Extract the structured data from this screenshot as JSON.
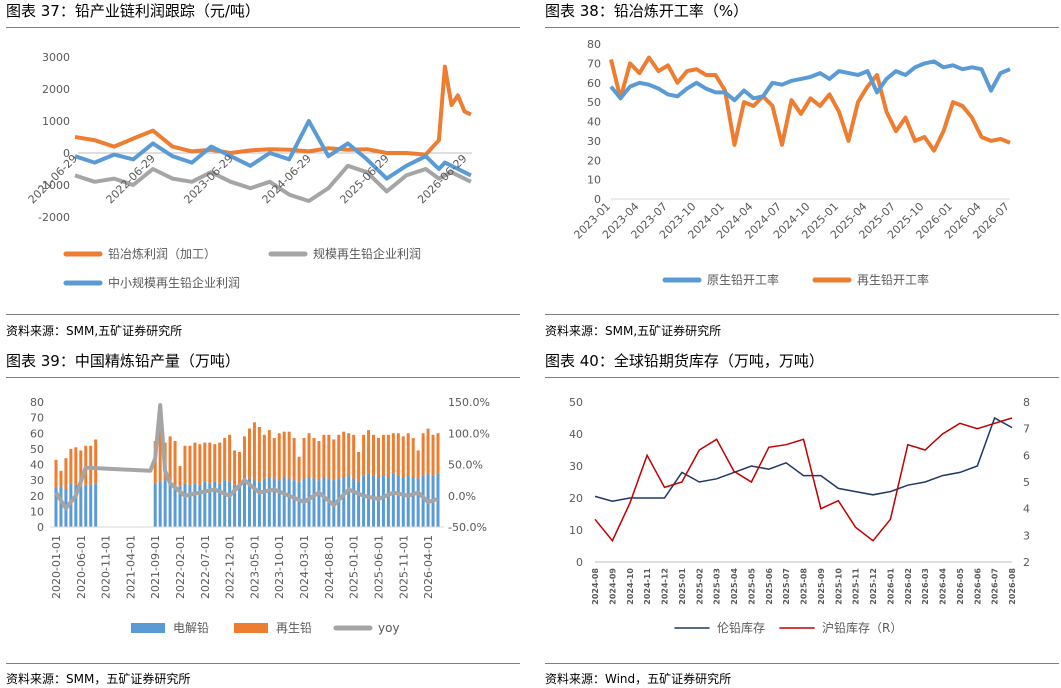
{
  "panels": [
    {
      "title": "图表 37：铅产业链利润跟踪（元/吨）",
      "source": "资料来源：SMM,五矿证券研究所"
    },
    {
      "title": "图表 38：铅冶炼开工率（%）",
      "source": "资料来源：SMM,五矿证券研究所"
    },
    {
      "title": "图表 39：中国精炼铅产量（万吨）",
      "source": "资料来源：SMM，五矿证券研究所"
    },
    {
      "title": "图表 40：全球铅期货库存（万吨，万吨）",
      "source": "资料来源：Wind，五矿证券研究所"
    }
  ],
  "chart_data": [
    {
      "type": "line",
      "title": "",
      "ylim": [
        -2000,
        3000
      ],
      "y_ticks": [
        "3000",
        "2000",
        "1000",
        "0",
        "-1000",
        "-2000"
      ],
      "x_ticks": [
        "2021-06-29",
        "2022-06-29",
        "2023-06-29",
        "2024-06-29",
        "2025-06-29",
        "2026-06-29"
      ],
      "x_range": [
        "2021-06-29",
        "2026-07-20"
      ],
      "grid": false,
      "legend_position": "bottom",
      "colors": {
        "smelting": "#ED7D31",
        "recycled_scale": "#A5A5A5",
        "recycled_small": "#5B9BD5"
      },
      "series": [
        {
          "name": "铅冶炼利润（加工）",
          "key": "smelting",
          "x": [
            "2021-06",
            "2021-09",
            "2021-12",
            "2022-03",
            "2022-06",
            "2022-09",
            "2022-12",
            "2023-03",
            "2023-06",
            "2023-09",
            "2023-12",
            "2024-03",
            "2024-06",
            "2024-09",
            "2024-12",
            "2025-03",
            "2025-06",
            "2025-09",
            "2025-12",
            "2026-02",
            "2026-03",
            "2026-04",
            "2026-05",
            "2026-06",
            "2026-07"
          ],
          "values": [
            500,
            400,
            200,
            450,
            700,
            200,
            50,
            100,
            0,
            80,
            120,
            100,
            50,
            150,
            100,
            120,
            0,
            0,
            -50,
            400,
            2700,
            1500,
            1800,
            1300,
            1200
          ]
        },
        {
          "name": "规模再生铅企业利润",
          "key": "recycled_scale",
          "x": [
            "2021-06",
            "2021-09",
            "2021-12",
            "2022-03",
            "2022-06",
            "2022-09",
            "2022-12",
            "2023-03",
            "2023-06",
            "2023-09",
            "2023-12",
            "2024-03",
            "2024-06",
            "2024-09",
            "2024-12",
            "2025-03",
            "2025-06",
            "2025-09",
            "2025-12",
            "2026-02",
            "2026-03",
            "2026-04",
            "2026-05",
            "2026-06",
            "2026-07"
          ],
          "values": [
            -700,
            -900,
            -800,
            -1000,
            -500,
            -800,
            -900,
            -600,
            -900,
            -1100,
            -900,
            -1300,
            -1500,
            -1100,
            -400,
            -600,
            -1200,
            -700,
            -500,
            -800,
            -700,
            -600,
            -700,
            -800,
            -900
          ]
        },
        {
          "name": "中小规模再生铅企业利润",
          "key": "recycled_small",
          "x": [
            "2021-06",
            "2021-09",
            "2021-12",
            "2022-03",
            "2022-06",
            "2022-09",
            "2022-12",
            "2023-03",
            "2023-06",
            "2023-09",
            "2023-12",
            "2024-03",
            "2024-06",
            "2024-09",
            "2024-12",
            "2025-03",
            "2025-06",
            "2025-09",
            "2025-12",
            "2026-02",
            "2026-03",
            "2026-04",
            "2026-05",
            "2026-06",
            "2026-07"
          ],
          "values": [
            -100,
            -300,
            -50,
            -200,
            300,
            -100,
            -300,
            200,
            -100,
            -400,
            0,
            -200,
            1000,
            -100,
            300,
            -200,
            -800,
            -400,
            -100,
            -500,
            -300,
            -400,
            -500,
            -600,
            -700
          ]
        }
      ]
    },
    {
      "type": "line",
      "title": "",
      "ylim": [
        0,
        80
      ],
      "y_ticks": [
        "80",
        "70",
        "60",
        "50",
        "40",
        "30",
        "20",
        "10",
        "0"
      ],
      "x_ticks": [
        "2023-01",
        "2023-04",
        "2023-07",
        "2023-10",
        "2024-01",
        "2024-04",
        "2024-07",
        "2024-10",
        "2025-01",
        "2025-04",
        "2025-07",
        "2025-10",
        "2026-01",
        "2026-04",
        "2026-07"
      ],
      "grid": false,
      "legend_position": "bottom",
      "colors": {
        "primary": "#5B9BD5",
        "recycled": "#ED7D31"
      },
      "series": [
        {
          "name": "原生铅开工率",
          "key": "primary",
          "x": [
            0,
            1,
            2,
            3,
            4,
            5,
            6,
            7,
            8,
            9,
            10,
            11,
            12,
            13,
            14,
            15,
            16,
            17,
            18,
            19,
            20,
            21,
            22,
            23,
            24,
            25,
            26,
            27,
            28,
            29,
            30,
            31,
            32,
            33,
            34,
            35,
            36,
            37,
            38,
            39,
            40,
            41,
            42
          ],
          "values": [
            58,
            52,
            58,
            60,
            59,
            57,
            54,
            53,
            57,
            60,
            57,
            55,
            55,
            51,
            56,
            52,
            53,
            60,
            59,
            61,
            62,
            63,
            65,
            62,
            66,
            65,
            64,
            66,
            55,
            62,
            66,
            64,
            68,
            70,
            71,
            68,
            69,
            67,
            68,
            67,
            56,
            65,
            67
          ]
        },
        {
          "name": "再生铅开工率",
          "key": "recycled",
          "x": [
            0,
            1,
            2,
            3,
            4,
            5,
            6,
            7,
            8,
            9,
            10,
            11,
            12,
            13,
            14,
            15,
            16,
            17,
            18,
            19,
            20,
            21,
            22,
            23,
            24,
            25,
            26,
            27,
            28,
            29,
            30,
            31,
            32,
            33,
            34,
            35,
            36,
            37,
            38,
            39,
            40,
            41,
            42
          ],
          "values": [
            72,
            52,
            70,
            65,
            73,
            66,
            69,
            60,
            66,
            67,
            64,
            64,
            56,
            28,
            50,
            48,
            53,
            48,
            28,
            51,
            44,
            52,
            48,
            54,
            45,
            30,
            50,
            58,
            64,
            45,
            35,
            42,
            30,
            32,
            25,
            35,
            50,
            48,
            42,
            32,
            30,
            31,
            29
          ]
        }
      ]
    },
    {
      "type": "bar",
      "title": "",
      "ylim": [
        0,
        80
      ],
      "y_ticks": [
        "80",
        "70",
        "60",
        "50",
        "40",
        "30",
        "20",
        "10",
        "0"
      ],
      "y2lim": [
        -50,
        150
      ],
      "y2_ticks": [
        "150.0%",
        "100.0%",
        "50.0%",
        "0.0%",
        "-50.0%"
      ],
      "x_ticks": [
        "2020-01-01",
        "2020-06-01",
        "2020-11-01",
        "2021-04-01",
        "2021-09-01",
        "2022-02-01",
        "2022-07-01",
        "2022-12-01",
        "2023-05-01",
        "2023-10-01",
        "2024-03-01",
        "2024-08-01",
        "2025-01-01",
        "2025-06-01",
        "2025-11-01",
        "2026-04-01"
      ],
      "grid": false,
      "legend_position": "bottom",
      "colors": {
        "electrolytic": "#5B9BD5",
        "recycled": "#ED7D31",
        "yoy": "#A5A5A5"
      },
      "categories": [
        "2020-01",
        "2020-02",
        "2020-03",
        "2020-04",
        "2020-05",
        "2020-06",
        "2020-07",
        "2020-08",
        "2020-09",
        "2020-10",
        "2020-11",
        "2020-12",
        "2021-01",
        "2021-02",
        "2021-03",
        "2021-04",
        "2021-05",
        "2021-06",
        "2021-07",
        "2021-08",
        "2021-09",
        "2021-10",
        "2021-11",
        "2021-12",
        "2022-01",
        "2022-02",
        "2022-03",
        "2022-04",
        "2022-05",
        "2022-06",
        "2022-07",
        "2022-08",
        "2022-09",
        "2022-10",
        "2022-11",
        "2022-12",
        "2023-01",
        "2023-02",
        "2023-03",
        "2023-04",
        "2023-05",
        "2023-06",
        "2023-07",
        "2023-08",
        "2023-09",
        "2023-10",
        "2023-11",
        "2023-12",
        "2024-01",
        "2024-02",
        "2024-03",
        "2024-04",
        "2024-05",
        "2024-06",
        "2024-07",
        "2024-08",
        "2024-09",
        "2024-10",
        "2024-11",
        "2024-12",
        "2025-01",
        "2025-02",
        "2025-03",
        "2025-04",
        "2025-05",
        "2025-06",
        "2025-07",
        "2025-08",
        "2025-09",
        "2025-10",
        "2025-11",
        "2025-12",
        "2026-01",
        "2026-02",
        "2026-03",
        "2026-04",
        "2026-05",
        "2026-06"
      ],
      "series": [
        {
          "name": "电解铅",
          "key": "electrolytic",
          "values": [
            25,
            26,
            24,
            28,
            27,
            26,
            27,
            27,
            28,
            null,
            null,
            null,
            null,
            null,
            null,
            null,
            null,
            null,
            null,
            null,
            28,
            29,
            30,
            28,
            27,
            26,
            28,
            27,
            28,
            27,
            29,
            28,
            29,
            28,
            30,
            29,
            27,
            28,
            30,
            31,
            30,
            29,
            31,
            32,
            31,
            30,
            32,
            31,
            30,
            29,
            31,
            32,
            31,
            30,
            32,
            31,
            30,
            31,
            32,
            33,
            31,
            29,
            33,
            34,
            33,
            32,
            33,
            32,
            34,
            33,
            32,
            33,
            32,
            31,
            33,
            34,
            33,
            34
          ]
        },
        {
          "name": "再生铅",
          "key": "recycled",
          "values": [
            18,
            10,
            20,
            22,
            24,
            23,
            25,
            25,
            28,
            null,
            null,
            null,
            null,
            null,
            null,
            null,
            null,
            null,
            null,
            null,
            27,
            35,
            24,
            30,
            28,
            13,
            24,
            25,
            26,
            26,
            25,
            26,
            24,
            26,
            27,
            30,
            22,
            20,
            28,
            32,
            37,
            35,
            28,
            30,
            26,
            30,
            29,
            30,
            27,
            16,
            26,
            28,
            26,
            25,
            27,
            28,
            26,
            28,
            29,
            27,
            28,
            19,
            26,
            28,
            26,
            25,
            26,
            27,
            26,
            27,
            26,
            27,
            25,
            18,
            27,
            29,
            26,
            26
          ]
        },
        {
          "name": "yoy",
          "key": "yoy",
          "axis": "right",
          "x": [
            "2020-01",
            "2020-03",
            "2020-05",
            "2020-07",
            "2021-08",
            "2021-09",
            "2021-10",
            "2021-11",
            "2021-12",
            "2022-03",
            "2022-06",
            "2022-09",
            "2022-12",
            "2023-03",
            "2023-06",
            "2023-09",
            "2023-12",
            "2024-03",
            "2024-06",
            "2024-09",
            "2024-12",
            "2025-03",
            "2025-06",
            "2025-09",
            "2025-12",
            "2026-02",
            "2026-04",
            "2026-06"
          ],
          "values": [
            5,
            -20,
            0,
            45,
            40,
            60,
            145,
            40,
            20,
            0,
            5,
            10,
            0,
            25,
            5,
            10,
            0,
            -10,
            5,
            -15,
            10,
            0,
            -5,
            5,
            0,
            5,
            -10,
            -5
          ]
        }
      ]
    },
    {
      "type": "line",
      "title": "",
      "ylim": [
        0,
        50
      ],
      "y_ticks": [
        "50",
        "40",
        "30",
        "20",
        "10",
        "0"
      ],
      "y2lim": [
        2,
        8
      ],
      "y2_ticks": [
        "8",
        "7",
        "6",
        "5",
        "4",
        "3",
        "2"
      ],
      "x_ticks": [
        "2024-08",
        "2024-09",
        "2024-10",
        "2024-11",
        "2024-12",
        "2025-01",
        "2025-02",
        "2025-03",
        "2025-04",
        "2025-05",
        "2025-06",
        "2025-07",
        "2025-08",
        "2025-09",
        "2025-10",
        "2025-11",
        "2025-12",
        "2026-01",
        "2026-02",
        "2026-03",
        "2026-04",
        "2026-05",
        "2026-06",
        "2026-07",
        "2026-08"
      ],
      "grid": false,
      "legend_position": "bottom",
      "colors": {
        "lme": "#1F3864",
        "shfe": "#C00000"
      },
      "series": [
        {
          "name": "伦铅库存",
          "key": "lme",
          "x": [
            0,
            1,
            2,
            3,
            4,
            5,
            6,
            7,
            8,
            9,
            10,
            11,
            12,
            13,
            14,
            15,
            16,
            17,
            18,
            19,
            20,
            21,
            22,
            23,
            24
          ],
          "values": [
            20.5,
            19,
            20,
            20,
            20,
            28,
            25,
            26,
            28,
            30,
            29,
            31,
            27,
            27,
            23,
            22,
            21,
            22,
            24,
            25,
            27,
            28,
            30,
            45,
            42
          ]
        },
        {
          "name": "沪铅库存（R）",
          "key": "shfe",
          "axis": "right",
          "x": [
            0,
            1,
            2,
            3,
            4,
            5,
            6,
            7,
            8,
            9,
            10,
            11,
            12,
            13,
            14,
            15,
            16,
            17,
            18,
            19,
            20,
            21,
            22,
            23,
            24
          ],
          "values": [
            3.6,
            2.8,
            4.2,
            6.0,
            4.8,
            5.0,
            6.2,
            6.6,
            5.4,
            5.0,
            6.3,
            6.4,
            6.6,
            4.0,
            4.3,
            3.3,
            2.8,
            3.6,
            6.4,
            6.2,
            6.8,
            7.2,
            7.0,
            7.2,
            7.4
          ]
        }
      ]
    }
  ]
}
